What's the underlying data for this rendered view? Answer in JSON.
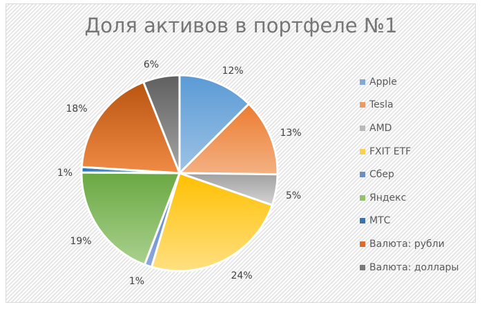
{
  "chart_data": {
    "type": "pie",
    "title": "Доля активов в портфеле №1",
    "categories": [
      "Apple",
      "Tesla",
      "AMD",
      "FXIT ETF",
      "Сбер",
      "Яндекс",
      "МТС",
      "Валюта: рубли",
      "Валюта: доллары"
    ],
    "values": [
      12,
      13,
      5,
      24,
      1,
      19,
      1,
      18,
      6
    ],
    "labels": [
      "12%",
      "13%",
      "5%",
      "24%",
      "1%",
      "19%",
      "1%",
      "18%",
      "6%"
    ],
    "colors": [
      "#5b9bd5",
      "#ed7d31",
      "#a5a5a5",
      "#ffc000",
      "#4472c4",
      "#70ad47",
      "#255e91",
      "#c55a11",
      "#636363"
    ],
    "legend_position": "right",
    "start_angle": 0,
    "direction": "clockwise"
  },
  "legend": {
    "items": [
      {
        "label": "Apple",
        "color": "#7fa9d6"
      },
      {
        "label": "Tesla",
        "color": "#eb9a6a"
      },
      {
        "label": "AMD",
        "color": "#b9b9b9"
      },
      {
        "label": "FXIT ETF",
        "color": "#fcd04e"
      },
      {
        "label": "Сбер",
        "color": "#6a8fc8"
      },
      {
        "label": "Яндекс",
        "color": "#94c16e"
      },
      {
        "label": "МТС",
        "color": "#3f72a8"
      },
      {
        "label": "Валюта: рубли",
        "color": "#d76e2a"
      },
      {
        "label": "Валюта: доллары",
        "color": "#7a7a7a"
      }
    ]
  }
}
